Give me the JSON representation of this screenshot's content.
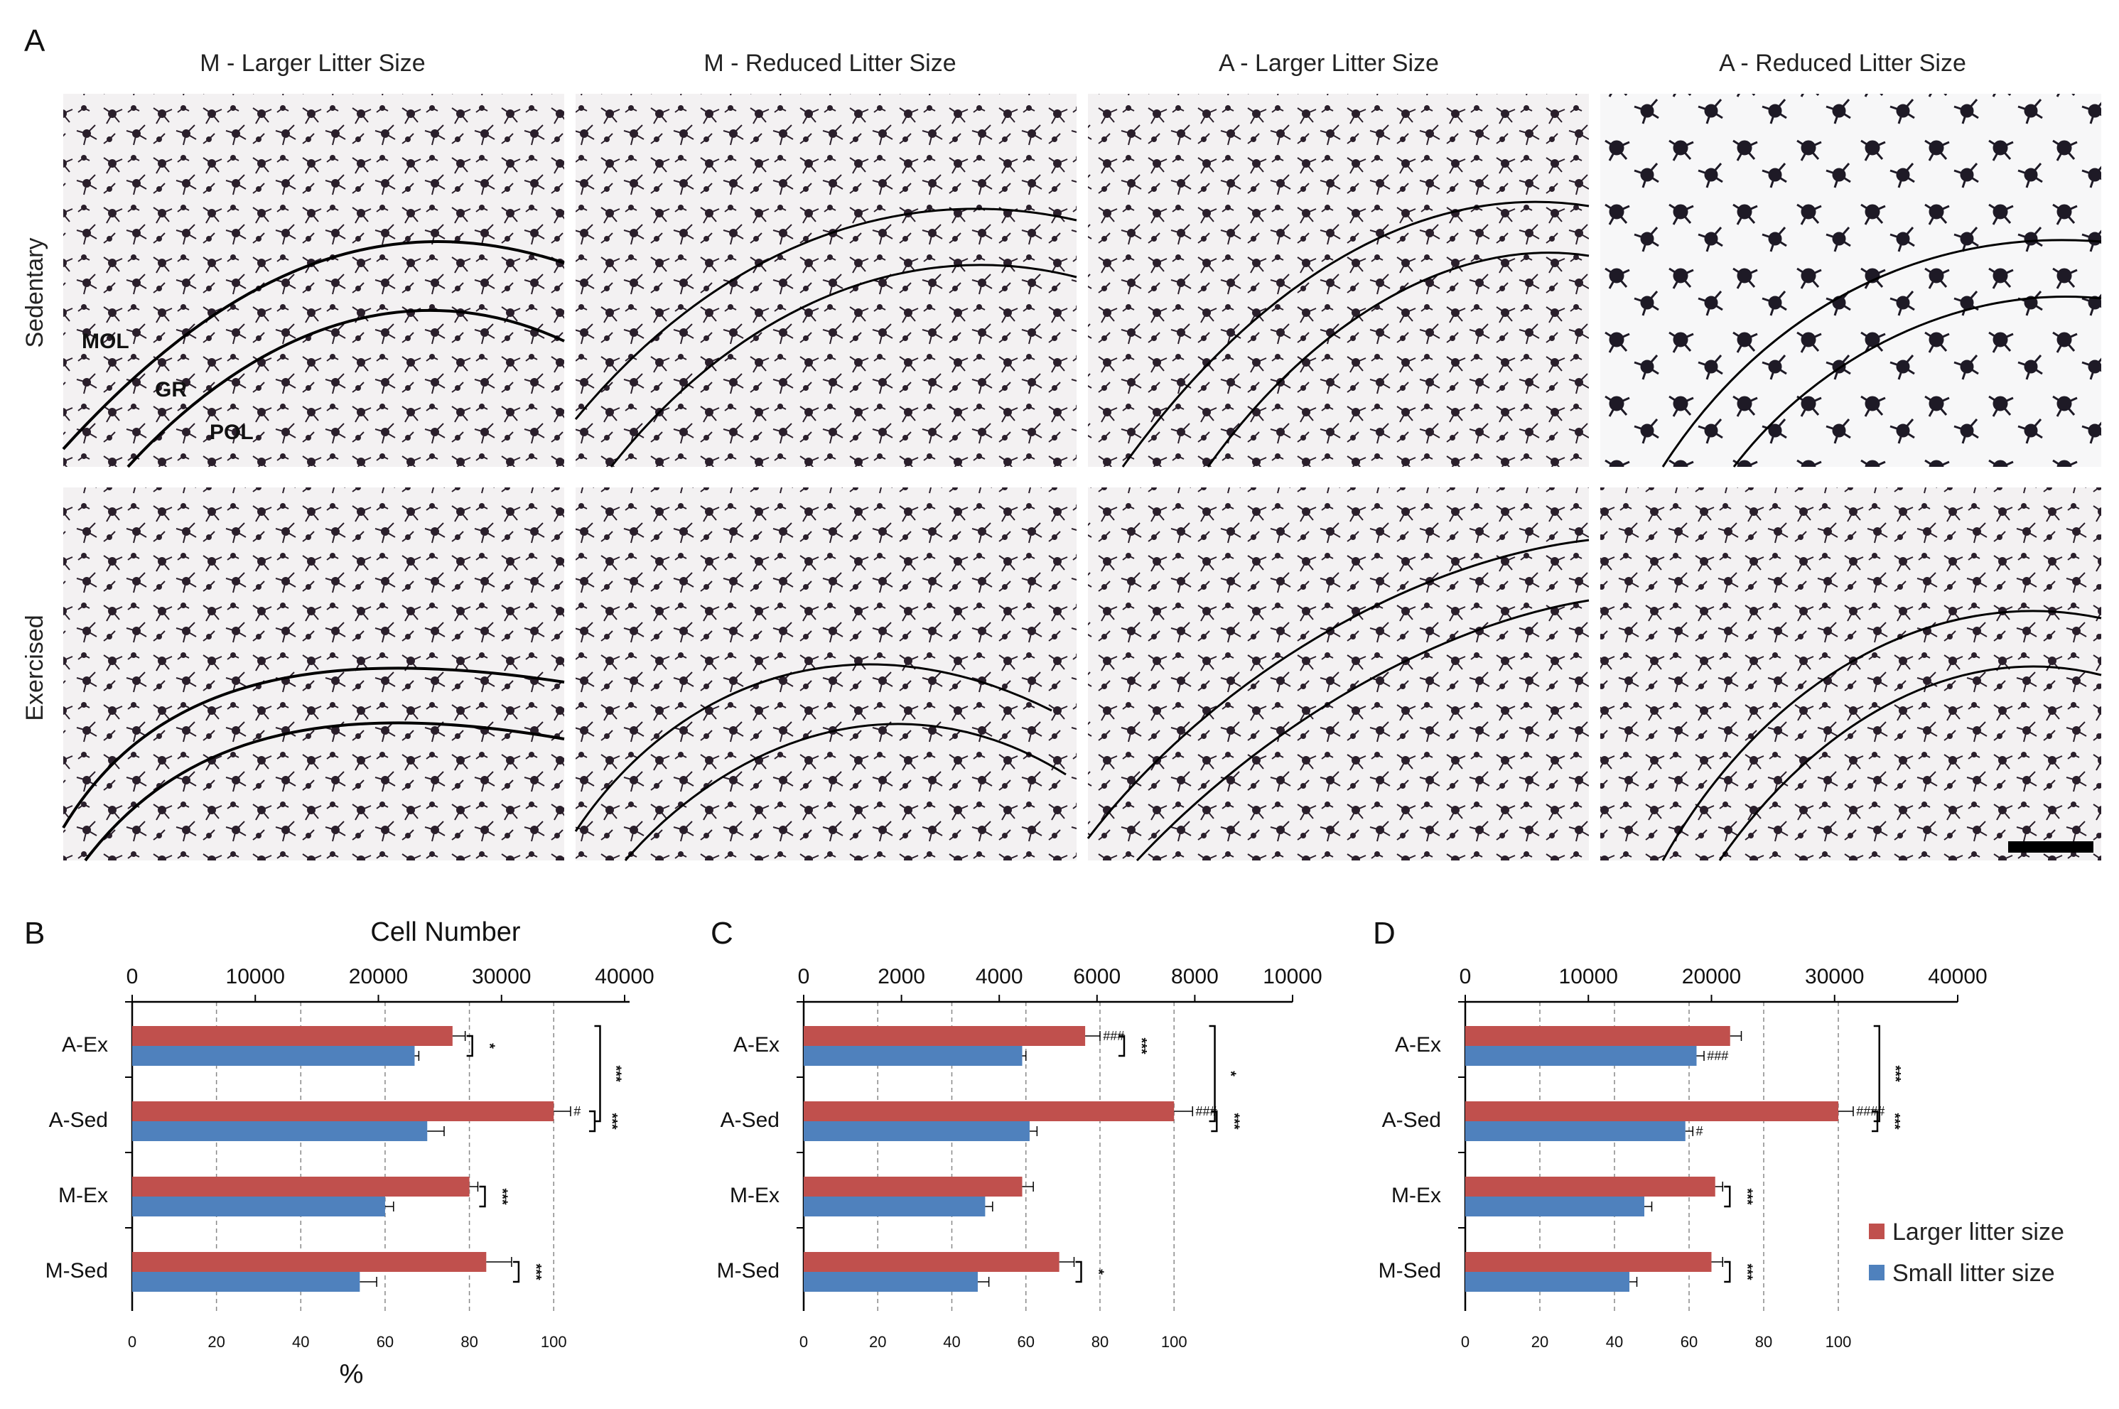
{
  "figure": {
    "panel_a_letter": "A",
    "columns": [
      "M - Larger Litter Size",
      "M - Reduced Litter Size",
      "A - Larger Litter Size",
      "A - Reduced Litter Size"
    ],
    "rows": [
      "Sedentary",
      "Exercised"
    ],
    "layer_labels": [
      "MOL",
      "GR",
      "POL"
    ]
  },
  "legend": {
    "items": [
      {
        "label": "Larger litter size",
        "color": "#c0504d"
      },
      {
        "label": "Small litter size",
        "color": "#4f81bd"
      }
    ]
  },
  "chart_data": [
    {
      "panel": "B",
      "type": "bar",
      "orientation": "horizontal",
      "top_axis_title": "Cell Number",
      "top_axis_ticks": [
        "0",
        "10000",
        "20000",
        "30000",
        "40000"
      ],
      "bottom_axis_title": "%",
      "bottom_axis_ticks": [
        "0",
        "20",
        "40",
        "60",
        "80",
        "100"
      ],
      "xlim_percent": [
        0,
        118
      ],
      "categories": [
        "A-Ex",
        "A-Sed",
        "M-Ex",
        "M-Sed"
      ],
      "series": [
        {
          "name": "Larger litter size",
          "values": [
            76,
            100,
            80,
            84
          ],
          "errors": [
            3,
            4,
            2,
            6
          ]
        },
        {
          "name": "Small litter size",
          "values": [
            67,
            70,
            60,
            54
          ],
          "errors": [
            1,
            4,
            2,
            4
          ]
        }
      ],
      "annotations": [
        {
          "category": "A-Ex",
          "pair": "*"
        },
        {
          "category": "A-Sed",
          "pair": "***",
          "hash_larger": "#"
        },
        {
          "category": "M-Ex",
          "pair": "***"
        },
        {
          "category": "M-Sed",
          "pair": "***"
        }
      ],
      "group_annotation": "***"
    },
    {
      "panel": "C",
      "type": "bar",
      "orientation": "horizontal",
      "top_axis_title": "",
      "top_axis_ticks": [
        "0",
        "2000",
        "4000",
        "6000",
        "8000",
        "10000"
      ],
      "bottom_axis_title": "",
      "bottom_axis_ticks": [
        "0",
        "20",
        "40",
        "60",
        "80",
        "100"
      ],
      "xlim_percent": [
        0,
        132
      ],
      "categories": [
        "A-Ex",
        "A-Sed",
        "M-Ex",
        "M-Sed"
      ],
      "series": [
        {
          "name": "Larger litter size",
          "values": [
            76,
            100,
            59,
            69
          ],
          "errors": [
            4,
            5,
            3,
            4
          ]
        },
        {
          "name": "Small litter size",
          "values": [
            59,
            61,
            49,
            47
          ],
          "errors": [
            1,
            2,
            2,
            3
          ]
        }
      ],
      "annotations": [
        {
          "category": "A-Ex",
          "pair": "***",
          "hash_larger": "###"
        },
        {
          "category": "A-Sed",
          "pair": "***",
          "hash_larger": "###"
        },
        {
          "category": "M-Ex",
          "pair": ""
        },
        {
          "category": "M-Sed",
          "pair": "*"
        }
      ],
      "group_annotation": "*"
    },
    {
      "panel": "D",
      "type": "bar",
      "orientation": "horizontal",
      "top_axis_title": "",
      "top_axis_ticks": [
        "0",
        "10000",
        "20000",
        "30000",
        "40000"
      ],
      "bottom_axis_title": "",
      "bottom_axis_ticks": [
        "0",
        "20",
        "40",
        "60",
        "80",
        "100"
      ],
      "xlim_percent": [
        0,
        132
      ],
      "categories": [
        "A-Ex",
        "A-Sed",
        "M-Ex",
        "M-Sed"
      ],
      "series": [
        {
          "name": "Larger litter size",
          "values": [
            71,
            100,
            67,
            66
          ],
          "errors": [
            3,
            4,
            2,
            3
          ]
        },
        {
          "name": "Small litter size",
          "values": [
            62,
            59,
            48,
            44
          ],
          "errors": [
            2,
            2,
            2,
            2
          ]
        }
      ],
      "annotations": [
        {
          "category": "A-Ex",
          "pair": "",
          "hash_small": "###"
        },
        {
          "category": "A-Sed",
          "pair": "***",
          "hash_larger": "####",
          "hash_small": "#"
        },
        {
          "category": "M-Ex",
          "pair": "***"
        },
        {
          "category": "M-Sed",
          "pair": "***"
        }
      ],
      "group_annotation": "***"
    }
  ]
}
